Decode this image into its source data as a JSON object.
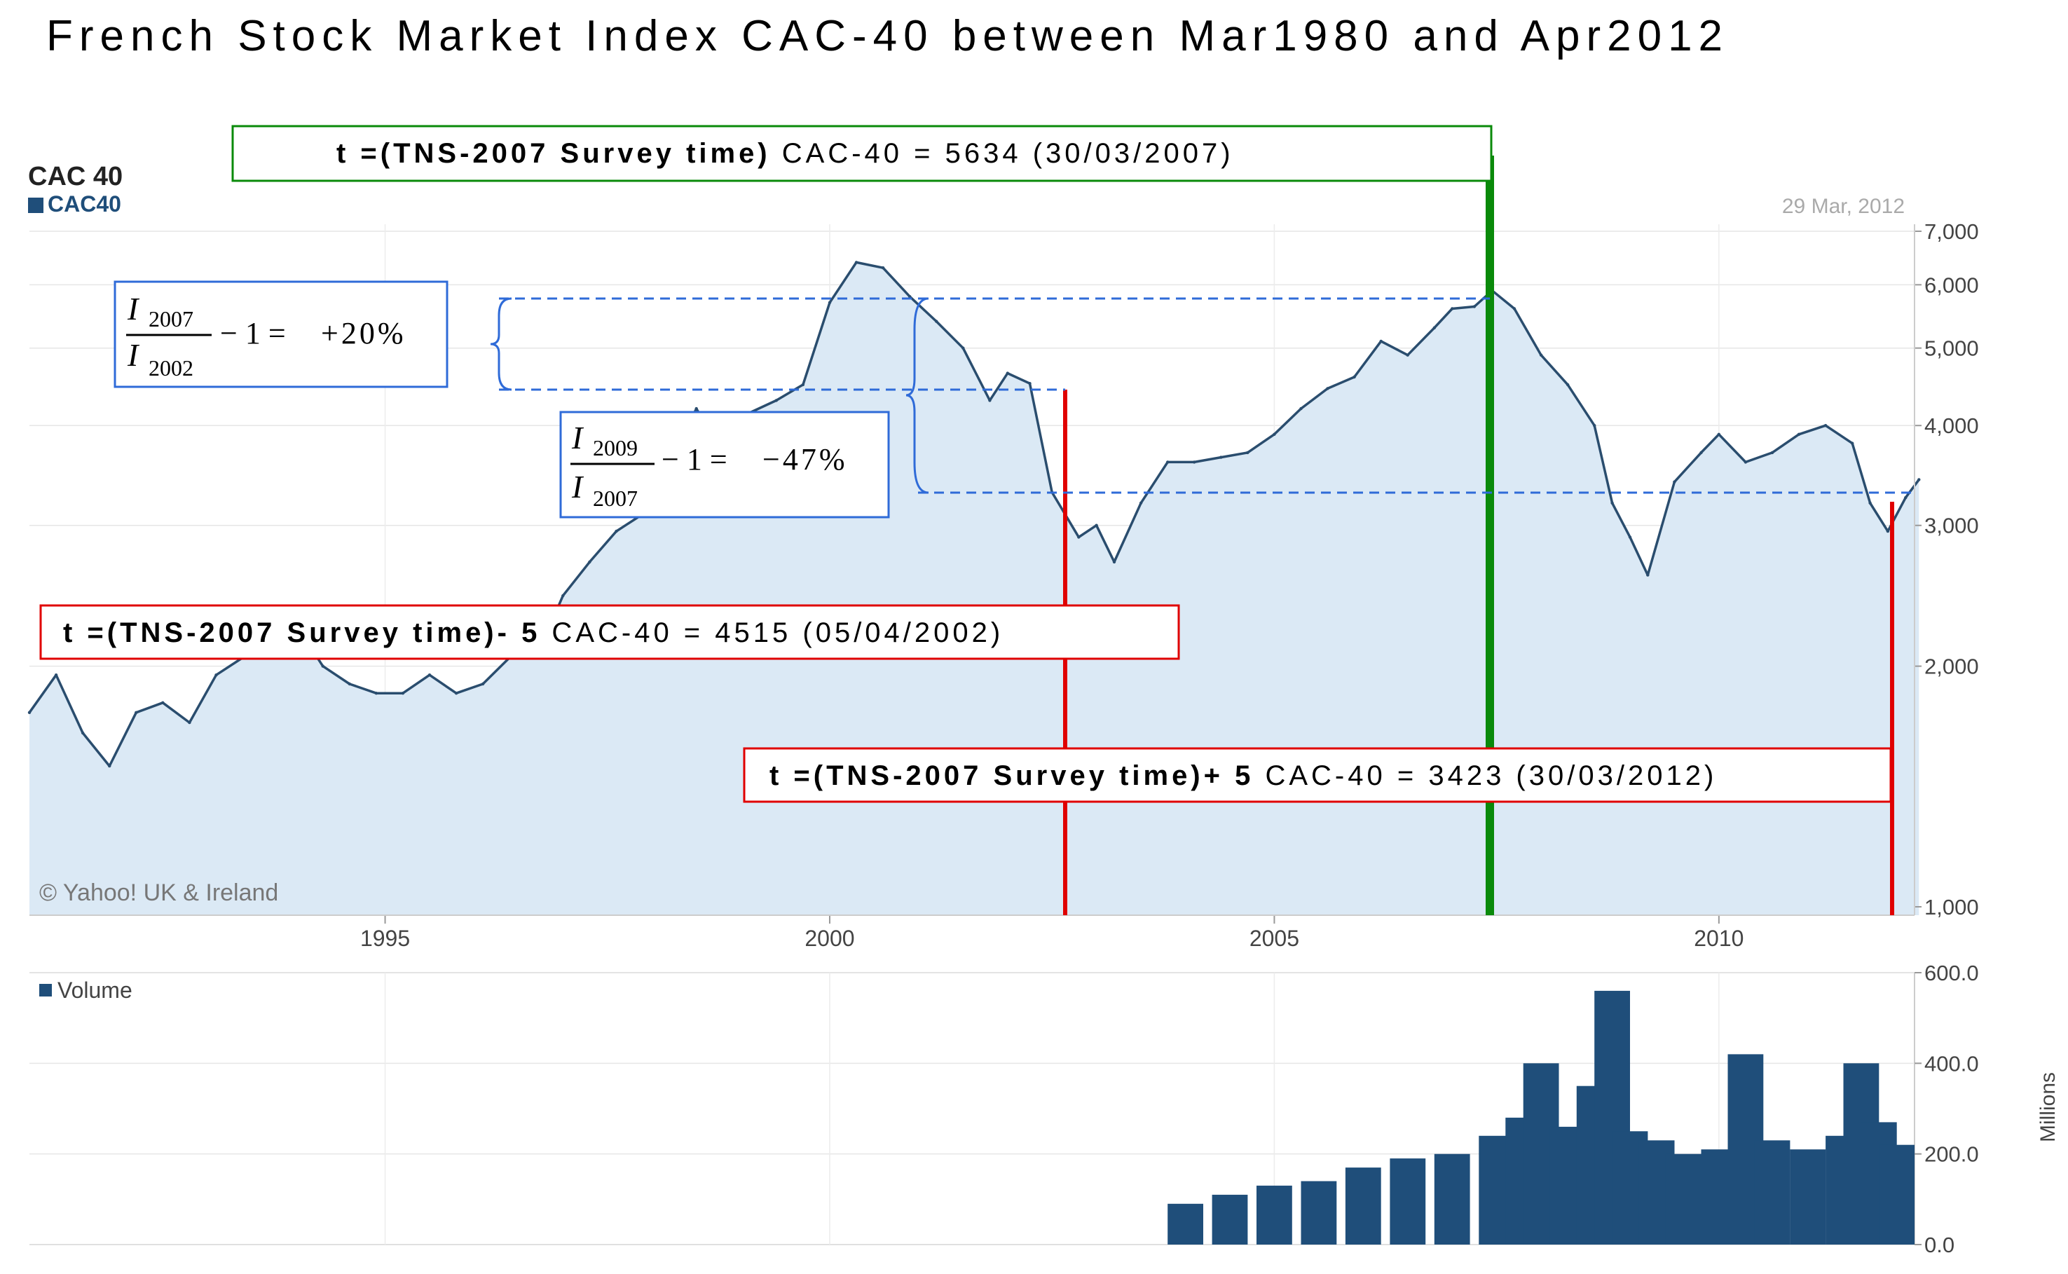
{
  "page": {
    "title": "French Stock Market Index CAC-40 between Mar1980 and Apr2012"
  },
  "header": {
    "chart_name": "CAC 40",
    "legend_label": "CAC40",
    "date_label": "29 Mar, 2012",
    "copyright": "© Yahoo! UK & Ireland"
  },
  "annotations": {
    "survey_bold": "t =(TNS-2007 Survey time)",
    "survey_rest": " CAC-40 = 5634 (30/03/2007)",
    "minus5_bold": "t =(TNS-2007 Survey time)- 5",
    "minus5_rest": " CAC-40 = 4515 (05/04/2002)",
    "plus5_bold": "t =(TNS-2007 Survey time)+ 5",
    "plus5_rest": " CAC-40 = 3423 (30/03/2012)"
  },
  "formulas": {
    "f1_num": "2007",
    "f1_den": "2002",
    "f1_result": "+20%",
    "f2_num": "2009",
    "f2_den": "2007",
    "f2_result": "−47%",
    "symbol": "I",
    "minus_one": "− 1 ="
  },
  "colors": {
    "line": "#2a4d6e",
    "area": "#dbe9f5",
    "accent": "#1f4e7a",
    "green": "#0a8a0a",
    "red": "#e00000",
    "dash": "#2f6bd8"
  },
  "chart_data": [
    {
      "type": "area",
      "name": "CAC 40",
      "series": [
        {
          "name": "CAC40",
          "x": [
            1991.0,
            1991.3,
            1991.6,
            1991.9,
            1992.2,
            1992.5,
            1992.8,
            1993.1,
            1993.4,
            1993.7,
            1994.0,
            1994.3,
            1994.6,
            1994.9,
            1995.2,
            1995.5,
            1995.8,
            1996.1,
            1996.4,
            1996.7,
            1997.0,
            1997.3,
            1997.6,
            1997.9,
            1998.2,
            1998.5,
            1998.8,
            1999.1,
            1999.4,
            1999.7,
            2000.0,
            2000.3,
            2000.6,
            2000.9,
            2001.2,
            2001.5,
            2001.8,
            2002.0,
            2002.25,
            2002.5,
            2002.8,
            2003.0,
            2003.2,
            2003.5,
            2003.8,
            2004.1,
            2004.4,
            2004.7,
            2005.0,
            2005.3,
            2005.6,
            2005.9,
            2006.2,
            2006.5,
            2006.8,
            2007.0,
            2007.25,
            2007.45,
            2007.7,
            2008.0,
            2008.3,
            2008.6,
            2008.8,
            2009.0,
            2009.2,
            2009.5,
            2009.8,
            2010.0,
            2010.3,
            2010.6,
            2010.9,
            2011.2,
            2011.5,
            2011.7,
            2011.9,
            2012.1,
            2012.25
          ],
          "values": [
            1750,
            1950,
            1650,
            1500,
            1750,
            1800,
            1700,
            1950,
            2050,
            2200,
            2250,
            2000,
            1900,
            1850,
            1850,
            1950,
            1850,
            1900,
            2050,
            2050,
            2450,
            2700,
            2950,
            3100,
            3600,
            4200,
            3700,
            4150,
            4300,
            4500,
            5700,
            6400,
            6300,
            5800,
            5400,
            5000,
            4300,
            4650,
            4515,
            3300,
            2900,
            3000,
            2700,
            3200,
            3600,
            3600,
            3650,
            3700,
            3900,
            4200,
            4450,
            4600,
            5100,
            4900,
            5300,
            5600,
            5634,
            5900,
            5600,
            4900,
            4500,
            4000,
            3200,
            2900,
            2600,
            3400,
            3700,
            3900,
            3600,
            3700,
            3900,
            4000,
            3800,
            3200,
            2950,
            3250,
            3423
          ]
        }
      ],
      "xlim": [
        1991,
        2012.2
      ],
      "ylim": [
        1000,
        7000
      ],
      "yscale": "log",
      "y_ticks": [
        1000,
        2000,
        3000,
        4000,
        5000,
        6000,
        7000
      ],
      "y_tick_labels": [
        "1,000",
        "2,000",
        "3,000",
        "4,000",
        "5,000",
        "6,000",
        "7,000"
      ],
      "x_ticks": [
        1995,
        2000,
        2005,
        2010
      ],
      "x_tick_labels": [
        "1995",
        "2000",
        "2005",
        "2010"
      ],
      "grid": true,
      "legend": "top-left"
    },
    {
      "type": "bar",
      "name": "Volume",
      "series": [
        {
          "name": "Volume",
          "x": [
            2004.0,
            2004.5,
            2005.0,
            2005.5,
            2006.0,
            2006.5,
            2007.0,
            2007.5,
            2007.8,
            2008.0,
            2008.3,
            2008.6,
            2008.8,
            2009.0,
            2009.3,
            2009.6,
            2010.0,
            2010.3,
            2010.6,
            2011.0,
            2011.4,
            2011.6,
            2011.8,
            2012.0
          ],
          "values": [
            90,
            110,
            130,
            140,
            170,
            190,
            200,
            240,
            280,
            400,
            260,
            350,
            560,
            250,
            230,
            200,
            210,
            420,
            230,
            210,
            240,
            400,
            270,
            220
          ]
        }
      ],
      "ylim": [
        0,
        600
      ],
      "y_ticks": [
        0,
        200,
        400,
        600
      ],
      "y_tick_labels": [
        "0.0",
        "200.0",
        "400.0",
        "600.0"
      ],
      "ylabel": "Millions",
      "legend": "top-left"
    }
  ]
}
